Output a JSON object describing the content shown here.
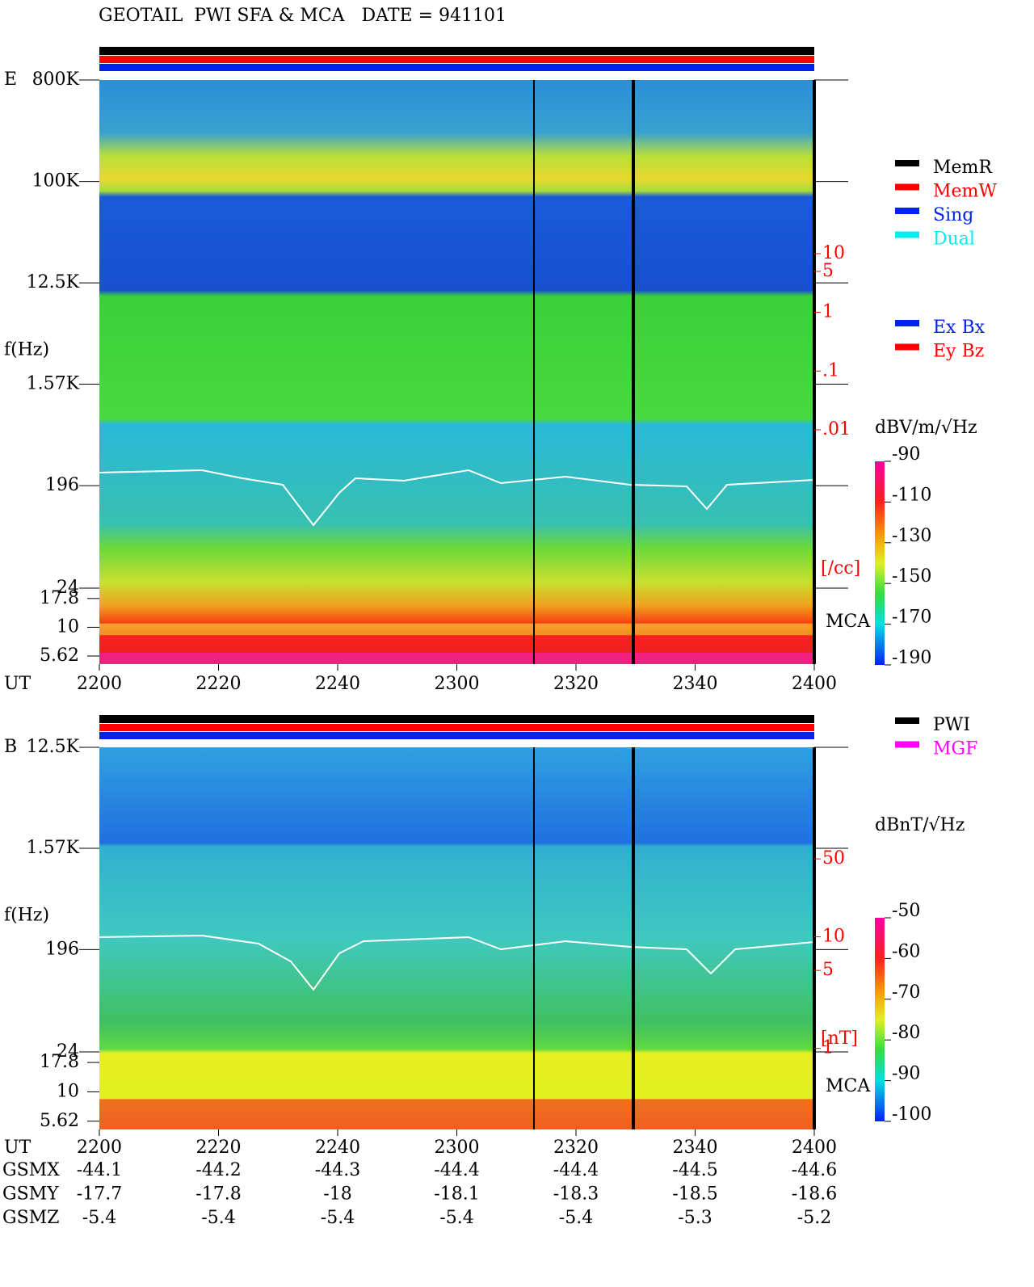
{
  "title": "GEOTAIL  PWI SFA & MCA   DATE = 941101",
  "chart_data": [
    {
      "type": "spectrogram",
      "panel_label": "E",
      "ylabel": "f(Hz)",
      "xlabel": "UT",
      "log_y": true,
      "categories": [
        "2200",
        "2220",
        "2240",
        "2300",
        "2320",
        "2340",
        "2400"
      ],
      "ylim": [
        24,
        800000
      ],
      "yticks": [
        {
          "value": 800000,
          "label": "800K"
        },
        {
          "value": 100000,
          "label": "100K"
        },
        {
          "value": 12500,
          "label": "12.5K"
        },
        {
          "value": 1570,
          "label": "1.57K"
        },
        196,
        24
      ],
      "mca_label": "MCA",
      "mca_lim": [
        4.78,
        21.9
      ],
      "mca_ticks": [
        17.8,
        10,
        5.62
      ],
      "y2label": "[/cc]",
      "y2lim": [
        2e-05,
        9100
      ],
      "y2ticks": [
        10,
        5,
        1,
        {
          "value": 0.1,
          "label": ".1"
        },
        {
          "value": 0.01,
          "label": ".01"
        }
      ],
      "colorbar": {
        "label": "dBV/m/√Hz",
        "lim": [
          -190,
          -90
        ],
        "ticks": [
          -90,
          -110,
          -130,
          -150,
          -170,
          -190
        ]
      },
      "legend": [
        {
          "name": "MemR",
          "color": "#000000"
        },
        {
          "name": "MemW",
          "color": "#ff0000"
        },
        {
          "name": "Sing",
          "color": "#0022ee"
        },
        {
          "name": "Dual",
          "color": "#00eeee"
        }
      ],
      "legend2": [
        {
          "name": "Ex Bx",
          "color": "#0022ee"
        },
        {
          "name": "Ey Bz",
          "color": "#ff0000"
        }
      ]
    },
    {
      "type": "spectrogram",
      "panel_label": "B",
      "ylabel": "f(Hz)",
      "xlabel": "UT",
      "log_y": true,
      "categories": [
        "2200",
        "2220",
        "2240",
        "2300",
        "2320",
        "2340",
        "2400"
      ],
      "ylim": [
        24,
        12500
      ],
      "yticks": [
        {
          "value": 12500,
          "label": "12.5K"
        },
        {
          "value": 1570,
          "label": "1.57K"
        },
        196,
        24
      ],
      "mca_label": "MCA",
      "mca_lim": [
        4.78,
        21.9
      ],
      "mca_ticks": [
        17.8,
        10,
        5.62
      ],
      "y2label": "[nT]",
      "y2lim": [
        0.93,
        500
      ],
      "y2ticks": [
        50,
        10,
        5,
        1
      ],
      "colorbar": {
        "label": "dBnT/√Hz",
        "lim": [
          -100,
          -50
        ],
        "ticks": [
          -50,
          -60,
          -70,
          -80,
          -90,
          -100
        ]
      },
      "legend": [
        {
          "name": "PWI",
          "color": "#000000"
        },
        {
          "name": "MGF",
          "color": "#ff00ff"
        }
      ]
    }
  ],
  "orbit": {
    "rows": [
      {
        "label": "GSMX",
        "values": [
          -44.1,
          -44.2,
          -44.3,
          -44.4,
          -44.4,
          -44.5,
          -44.6
        ]
      },
      {
        "label": "GSMY",
        "values": [
          -17.7,
          -17.8,
          -18.0,
          -18.1,
          -18.3,
          -18.5,
          -18.6
        ]
      },
      {
        "label": "GSMZ",
        "values": [
          -5.4,
          -5.4,
          -5.4,
          -5.4,
          -5.4,
          -5.3,
          -5.2
        ]
      }
    ]
  }
}
